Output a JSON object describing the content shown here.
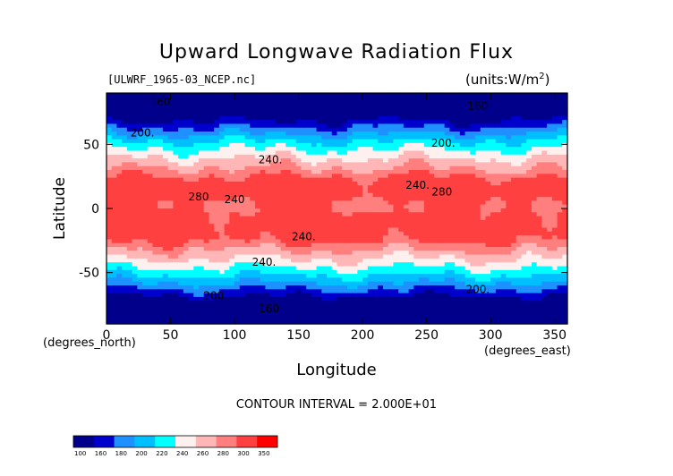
{
  "chart_data": {
    "type": "heatmap",
    "title": "Upward Longwave Radiation Flux",
    "file_label": "[ULWRF_1965-03_NCEP.nc]",
    "units": "(units:W/m^2)",
    "xlabel": "Longitude",
    "ylabel": "Latitude",
    "x_unit_label": "(degrees_east)",
    "y_unit_label": "(degrees_north)",
    "xlim": [
      0,
      360
    ],
    "ylim": [
      -90,
      90
    ],
    "x_ticks": [
      0,
      50,
      100,
      150,
      200,
      250,
      300,
      350
    ],
    "y_ticks": [
      -50,
      0,
      50
    ],
    "contour_interval_text": "CONTOUR INTERVAL = 2.000E+01",
    "contour_labels": [
      {
        "text": "160",
        "lon": 42,
        "lat": 83
      },
      {
        "text": "160",
        "lon": 290,
        "lat": 80
      },
      {
        "text": "200.",
        "lon": 28,
        "lat": 59
      },
      {
        "text": "200.",
        "lon": 263,
        "lat": 51
      },
      {
        "text": "240.",
        "lon": 128,
        "lat": 38
      },
      {
        "text": "240.",
        "lon": 243,
        "lat": 18
      },
      {
        "text": "280",
        "lon": 72,
        "lat": 9
      },
      {
        "text": "240",
        "lon": 100,
        "lat": 7
      },
      {
        "text": "280",
        "lon": 262,
        "lat": 13
      },
      {
        "text": "240.",
        "lon": 154,
        "lat": -22
      },
      {
        "text": "240.",
        "lon": 123,
        "lat": -42
      },
      {
        "text": "200.",
        "lon": 85,
        "lat": -68
      },
      {
        "text": "200.",
        "lon": 290,
        "lat": -63
      },
      {
        "text": "160",
        "lon": 127,
        "lat": -78
      }
    ],
    "colorbar": {
      "levels": [
        "100",
        "160",
        "180",
        "200",
        "220",
        "240",
        "260",
        "280",
        "300",
        "350"
      ],
      "colors": [
        "#00008b",
        "#0000cd",
        "#1e90ff",
        "#00bfff",
        "#00ffff",
        "#fff0f0",
        "#ffb6b6",
        "#ff7f7f",
        "#ff4040",
        "#ff0000"
      ]
    }
  }
}
